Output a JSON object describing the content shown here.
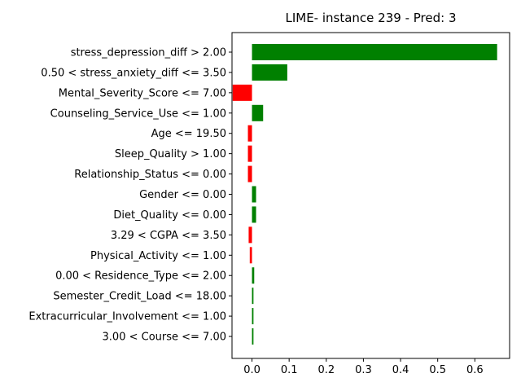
{
  "chart_data": {
    "type": "bar",
    "orientation": "horizontal",
    "title": "LIME- instance 239 - Pred: 3",
    "xlabel": "",
    "ylabel": "",
    "xlim": [
      -0.0538,
      0.6936
    ],
    "xticks": [
      0.0,
      0.1,
      0.2,
      0.3,
      0.4,
      0.5,
      0.6
    ],
    "xtick_labels": [
      "0.0",
      "0.1",
      "0.2",
      "0.3",
      "0.4",
      "0.5",
      "0.6"
    ],
    "grid": false,
    "legend": "none",
    "colors": {
      "positive": "#008000",
      "negative": "#ff0000"
    },
    "categories": [
      "stress_depression_diff > 2.00",
      "0.50 < stress_anxiety_diff <= 3.50",
      "Mental_Severity_Score <= 7.00",
      "Counseling_Service_Use <= 1.00",
      "Age <= 19.50",
      "Sleep_Quality > 1.00",
      "Relationship_Status <= 0.00",
      "Gender <= 0.00",
      "Diet_Quality <= 0.00",
      "3.29 < CGPA <= 3.50",
      "Physical_Activity <= 1.00",
      "0.00 < Residence_Type <= 2.00",
      "Semester_Credit_Load <= 18.00",
      "Extracurricular_Involvement <= 1.00",
      "3.00 < Course <= 7.00"
    ],
    "values": [
      0.66,
      0.095,
      -0.052,
      0.03,
      -0.011,
      -0.011,
      -0.011,
      0.011,
      0.011,
      -0.009,
      -0.006,
      0.006,
      0.004,
      0.004,
      0.004
    ]
  }
}
